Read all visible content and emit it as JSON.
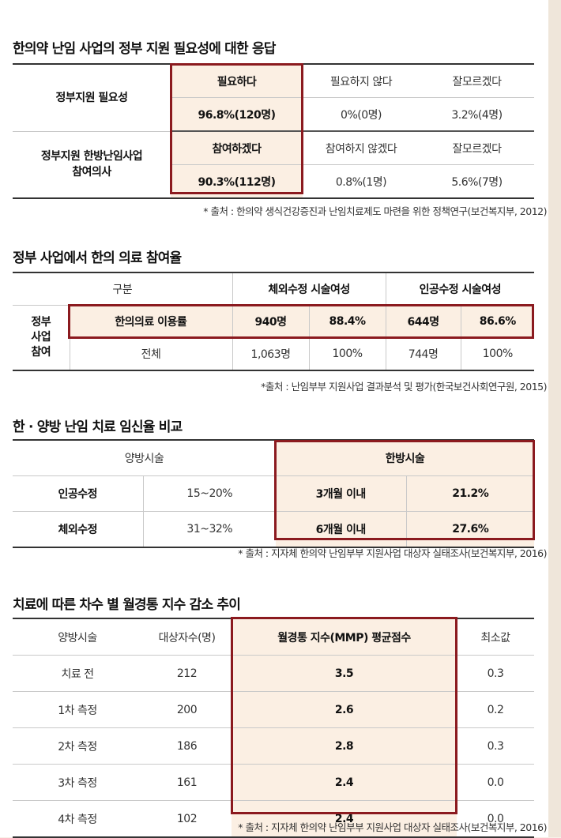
{
  "sections": [
    {
      "title": "한의약 난임 사업의 정부 지원 필요성에 대한 응답",
      "rows": [
        {
          "label": "정부지원 필요성",
          "options": [
            "필요하다",
            "필요하지 않다",
            "잘모르겠다"
          ],
          "values": [
            "96.8%(120명)",
            "0%(0명)",
            "3.2%(4명)"
          ]
        },
        {
          "label_lines": [
            "정부지원 한방난임사업",
            "참여의사"
          ],
          "options": [
            "참여하겠다",
            "참여하지 않겠다",
            "잘모르겠다"
          ],
          "values": [
            "90.3%(112명)",
            "0.8%(1명)",
            "5.6%(7명)"
          ]
        }
      ],
      "source": "* 출처 : 한의약 생식건강증진과 난임치료제도 마련을 위한 정책연구(보건복지부, 2012)"
    },
    {
      "title": "정부 사업에서 한의 의료 참여율",
      "header": [
        "구분",
        "체외수정 시술여성",
        "인공수정 시술여성"
      ],
      "row_group": [
        "정부",
        "사업",
        "참여"
      ],
      "rows": [
        {
          "label": "한의의료 이용률",
          "cells": [
            "940명",
            "88.4%",
            "644명",
            "86.6%"
          ]
        },
        {
          "label": "전체",
          "cells": [
            "1,063명",
            "100%",
            "744명",
            "100%"
          ]
        }
      ],
      "source": "*출처 : 난임부부 지원사업 결과분석 및 평가(한국보건사회연구원, 2015)"
    },
    {
      "title": "한 · 양방 난임 치료 임신율 비교",
      "header": [
        "양방시술",
        "한방시술"
      ],
      "rows": [
        {
          "label": "인공수정",
          "value": "15~20%",
          "period": "3개월 이내",
          "rate": "21.2%"
        },
        {
          "label": "체외수정",
          "value": "31~32%",
          "period": "6개월 이내",
          "rate": "27.6%"
        }
      ],
      "source": "* 출처 : 지자체 한의약 난임부부 지원사업 대상자 실태조사(보건복지부, 2016)"
    },
    {
      "title": "치료에 따른 차수 별 월경통 지수 감소 추이",
      "header": [
        "양방시술",
        "대상자수(명)",
        "월경통 지수(MMP) 평균점수",
        "최소값"
      ],
      "rows": [
        [
          "치료 전",
          "212",
          "3.5",
          "0.3"
        ],
        [
          "1차 측정",
          "200",
          "2.6",
          "0.2"
        ],
        [
          "2차 측정",
          "186",
          "2.8",
          "0.3"
        ],
        [
          "3차 측정",
          "161",
          "2.4",
          "0.0"
        ],
        [
          "4차 측정",
          "102",
          "2.4",
          "0.0"
        ]
      ],
      "source": "* 출처 : 지자체 한의약 난임부부 지원사업 대상자 실태조사(보건복지부, 2016)"
    }
  ],
  "colors": {
    "accent_box": "#8b1a1f",
    "highlight_fill": "#fbefe3",
    "rule": "#333333"
  }
}
